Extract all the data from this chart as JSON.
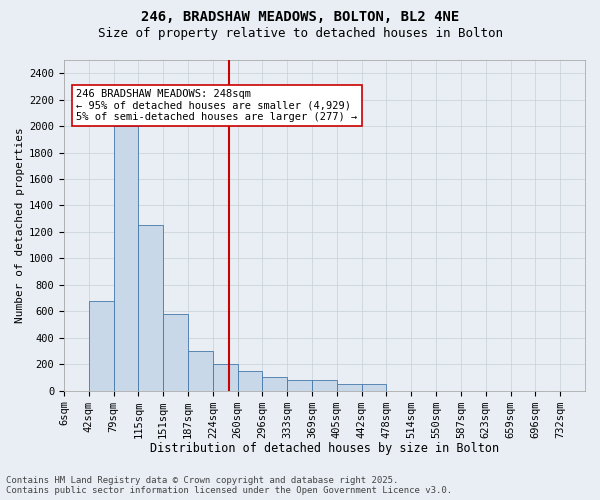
{
  "title1": "246, BRADSHAW MEADOWS, BOLTON, BL2 4NE",
  "title2": "Size of property relative to detached houses in Bolton",
  "xlabel": "Distribution of detached houses by size in Bolton",
  "ylabel": "Number of detached properties",
  "bin_labels": [
    "6sqm",
    "42sqm",
    "79sqm",
    "115sqm",
    "151sqm",
    "187sqm",
    "224sqm",
    "260sqm",
    "296sqm",
    "333sqm",
    "369sqm",
    "405sqm",
    "442sqm",
    "478sqm",
    "514sqm",
    "550sqm",
    "587sqm",
    "623sqm",
    "659sqm",
    "696sqm",
    "732sqm"
  ],
  "bar_heights": [
    0,
    680,
    2000,
    1250,
    580,
    300,
    200,
    150,
    100,
    80,
    80,
    50,
    50,
    0,
    0,
    0,
    0,
    0,
    0,
    0,
    0
  ],
  "bar_color": "#c8d8e8",
  "bar_edge_color": "#4477aa",
  "grid_color": "#c8d0d8",
  "bg_color": "#e8eef4",
  "vline_bin": 6,
  "vline_color": "#cc0000",
  "annotation_text": "246 BRADSHAW MEADOWS: 248sqm\n← 95% of detached houses are smaller (4,929)\n5% of semi-detached houses are larger (277) →",
  "annotation_box_color": "#ffffff",
  "annotation_box_edge": "#cc0000",
  "ylim": [
    0,
    2500
  ],
  "yticks": [
    0,
    200,
    400,
    600,
    800,
    1000,
    1200,
    1400,
    1600,
    1800,
    2000,
    2200,
    2400
  ],
  "footer1": "Contains HM Land Registry data © Crown copyright and database right 2025.",
  "footer2": "Contains public sector information licensed under the Open Government Licence v3.0.",
  "title1_fontsize": 10,
  "title2_fontsize": 9,
  "xlabel_fontsize": 8.5,
  "ylabel_fontsize": 8,
  "tick_fontsize": 7.5,
  "annotation_fontsize": 7.5,
  "footer_fontsize": 6.5
}
